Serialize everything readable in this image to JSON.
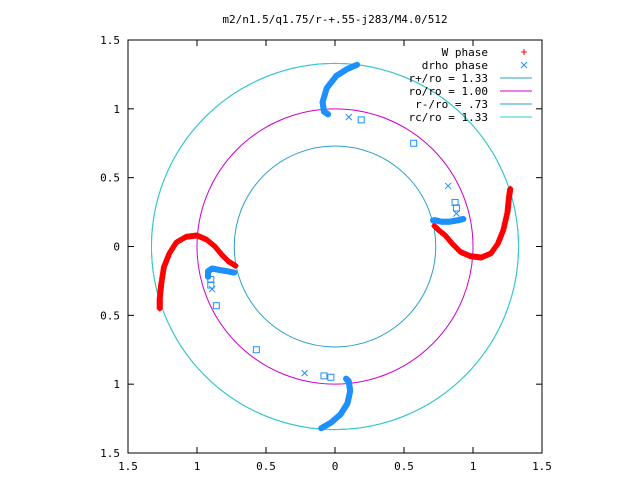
{
  "chart_data": {
    "type": "scatter",
    "title": "m2/n1.5/q1.75/r-+.55-j283/M4.0/512",
    "xlim": [
      -1.5,
      1.5
    ],
    "ylim": [
      -1.5,
      1.5
    ],
    "x_ticks": [
      -1.5,
      -1,
      -0.5,
      0,
      0.5,
      1,
      1.5
    ],
    "y_ticks": [
      -1.5,
      -1,
      -0.5,
      0,
      0.5,
      1,
      1.5
    ],
    "x_tick_labels": [
      "1.5",
      "1",
      "0.5",
      "0",
      "0.5",
      "1",
      "1.5"
    ],
    "y_tick_labels": [
      "1.5",
      "1",
      "0.5",
      "0",
      "0.5",
      "1",
      "1.5"
    ],
    "grid": false,
    "legend_position": "top-right",
    "legend": [
      {
        "label": "W phase",
        "kind": "point",
        "marker": "plus",
        "color": "#ff0000"
      },
      {
        "label": "drho phase",
        "kind": "point",
        "marker": "cross",
        "color": "#1e90ff"
      },
      {
        "label": "r+/ro = 1.33",
        "kind": "circle",
        "r": 1.33,
        "color": "#2a9fc8"
      },
      {
        "label": "ro/ro = 1.00",
        "kind": "circle",
        "r": 1.0,
        "color": "#cc00cc"
      },
      {
        "label": "r-/ro = .73",
        "kind": "circle",
        "r": 0.73,
        "color": "#2a9fc8"
      },
      {
        "label": "rc/ro = 1.33",
        "kind": "circle",
        "r": 1.33,
        "color": "#33cccc"
      }
    ],
    "w_phase": {
      "name": "W phase",
      "color": "#ff0000",
      "arms": [
        {
          "points": [
            [
              -1.27,
              -0.45
            ],
            [
              -1.27,
              -0.38
            ],
            [
              -1.26,
              -0.28
            ],
            [
              -1.24,
              -0.15
            ],
            [
              -1.2,
              -0.05
            ],
            [
              -1.15,
              0.03
            ],
            [
              -1.08,
              0.07
            ],
            [
              -1.0,
              0.08
            ],
            [
              -0.93,
              0.05
            ],
            [
              -0.87,
              0.0
            ],
            [
              -0.82,
              -0.06
            ],
            [
              -0.77,
              -0.11
            ],
            [
              -0.72,
              -0.14
            ]
          ]
        },
        {
          "points": [
            [
              1.27,
              0.42
            ],
            [
              1.26,
              0.35
            ],
            [
              1.25,
              0.25
            ],
            [
              1.22,
              0.12
            ],
            [
              1.18,
              0.02
            ],
            [
              1.13,
              -0.05
            ],
            [
              1.06,
              -0.08
            ],
            [
              0.98,
              -0.07
            ],
            [
              0.91,
              -0.04
            ],
            [
              0.85,
              0.02
            ],
            [
              0.8,
              0.08
            ],
            [
              0.75,
              0.12
            ],
            [
              0.72,
              0.15
            ]
          ]
        }
      ]
    },
    "drho_phase": {
      "name": "drho phase",
      "color": "#1e90ff",
      "arms": [
        {
          "points": [
            [
              -0.1,
              -1.32
            ],
            [
              -0.03,
              -1.28
            ],
            [
              0.04,
              -1.22
            ],
            [
              0.09,
              -1.14
            ],
            [
              0.11,
              -1.05
            ],
            [
              0.1,
              -0.98
            ],
            [
              0.08,
              -0.96
            ]
          ]
        },
        {
          "points": [
            [
              0.16,
              1.32
            ],
            [
              0.09,
              1.29
            ],
            [
              0.01,
              1.24
            ],
            [
              -0.06,
              1.15
            ],
            [
              -0.09,
              1.05
            ],
            [
              -0.08,
              0.98
            ],
            [
              -0.05,
              0.96
            ]
          ]
        },
        {
          "points": [
            [
              -0.92,
              -0.22
            ],
            [
              -0.92,
              -0.18
            ],
            [
              -0.89,
              -0.16
            ],
            [
              -0.84,
              -0.17
            ],
            [
              -0.78,
              -0.18
            ],
            [
              -0.73,
              -0.19
            ]
          ]
        },
        {
          "points": [
            [
              0.93,
              0.2
            ],
            [
              0.89,
              0.19
            ],
            [
              0.83,
              0.18
            ],
            [
              0.77,
              0.18
            ],
            [
              0.73,
              0.19
            ],
            [
              0.71,
              0.19
            ]
          ]
        }
      ],
      "scatter": [
        [
          0.1,
          0.94
        ],
        [
          0.19,
          0.92
        ],
        [
          0.57,
          0.75
        ],
        [
          0.82,
          0.44
        ],
        [
          0.87,
          0.32
        ],
        [
          0.88,
          0.28
        ],
        [
          0.88,
          0.24
        ],
        [
          -0.9,
          -0.24
        ],
        [
          -0.9,
          -0.28
        ],
        [
          -0.89,
          -0.31
        ],
        [
          -0.86,
          -0.43
        ],
        [
          -0.57,
          -0.75
        ],
        [
          -0.22,
          -0.92
        ],
        [
          -0.08,
          -0.94
        ],
        [
          -0.03,
          -0.95
        ]
      ]
    }
  }
}
